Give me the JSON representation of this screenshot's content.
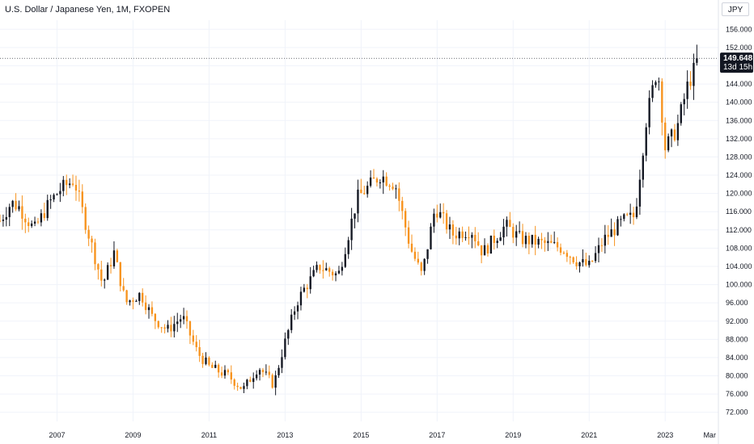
{
  "header": {
    "title": "U.S. Dollar / Japanese Yen, 1M, FXOPEN"
  },
  "toolbar": {
    "currency_label": "JPY"
  },
  "colors": {
    "up": "#131722",
    "down": "#f7931e",
    "grid": "#f0f3fa",
    "text": "#131722"
  },
  "chart_data": {
    "type": "candlestick",
    "title": "U.S. Dollar / Japanese Yen, 1M, FXOPEN",
    "interval": "1M",
    "xlabel": "",
    "ylabel": "",
    "ylim": [
      70,
      158
    ],
    "y_ticks": [
      "72.000",
      "76.000",
      "80.000",
      "84.000",
      "88.000",
      "92.000",
      "96.000",
      "100.000",
      "104.000",
      "108.000",
      "112.000",
      "116.000",
      "120.000",
      "124.000",
      "128.000",
      "132.000",
      "136.000",
      "140.000",
      "144.000",
      "148.000",
      "152.000",
      "156.000"
    ],
    "x_ticks": [
      {
        "label": "2007",
        "year": 2007
      },
      {
        "label": "2009",
        "year": 2009
      },
      {
        "label": "2011",
        "year": 2011
      },
      {
        "label": "2013",
        "year": 2013
      },
      {
        "label": "2015",
        "year": 2015
      },
      {
        "label": "2017",
        "year": 2017
      },
      {
        "label": "2019",
        "year": 2019
      },
      {
        "label": "2021",
        "year": 2021
      },
      {
        "label": "2023",
        "year": 2023
      },
      {
        "label": "Mar",
        "year": 2024.17
      }
    ],
    "x_range": [
      2005.5,
      2024.4
    ],
    "last_price": {
      "value": 149.648,
      "label": "149.648",
      "countdown": "13d 15h"
    },
    "grid": true,
    "anchors": [
      [
        2005.5,
        114
      ],
      [
        2005.8,
        118
      ],
      [
        2006.0,
        117
      ],
      [
        2006.4,
        112
      ],
      [
        2006.8,
        118
      ],
      [
        2007.1,
        121
      ],
      [
        2007.45,
        123
      ],
      [
        2007.8,
        112
      ],
      [
        2008.2,
        100
      ],
      [
        2008.5,
        107
      ],
      [
        2008.8,
        96
      ],
      [
        2009.2,
        98
      ],
      [
        2009.5,
        93
      ],
      [
        2009.9,
        90
      ],
      [
        2010.3,
        93
      ],
      [
        2010.7,
        85
      ],
      [
        2011.0,
        82
      ],
      [
        2011.5,
        80
      ],
      [
        2011.9,
        77
      ],
      [
        2012.3,
        82
      ],
      [
        2012.7,
        78
      ],
      [
        2012.95,
        86
      ],
      [
        2013.3,
        96
      ],
      [
        2013.5,
        99
      ],
      [
        2013.9,
        104
      ],
      [
        2014.4,
        102
      ],
      [
        2014.9,
        119
      ],
      [
        2015.5,
        124
      ],
      [
        2015.9,
        122
      ],
      [
        2016.3,
        108
      ],
      [
        2016.6,
        102
      ],
      [
        2016.95,
        117
      ],
      [
        2017.4,
        111
      ],
      [
        2017.9,
        112
      ],
      [
        2018.2,
        107
      ],
      [
        2018.8,
        113
      ],
      [
        2019.2,
        110
      ],
      [
        2019.8,
        109
      ],
      [
        2020.3,
        108
      ],
      [
        2020.7,
        105
      ],
      [
        2021.0,
        104
      ],
      [
        2021.4,
        110
      ],
      [
        2021.9,
        114
      ],
      [
        2022.2,
        115
      ],
      [
        2022.5,
        136
      ],
      [
        2022.8,
        148
      ],
      [
        2023.0,
        130
      ],
      [
        2023.3,
        134
      ],
      [
        2023.6,
        144
      ],
      [
        2023.9,
        149.648
      ]
    ]
  }
}
